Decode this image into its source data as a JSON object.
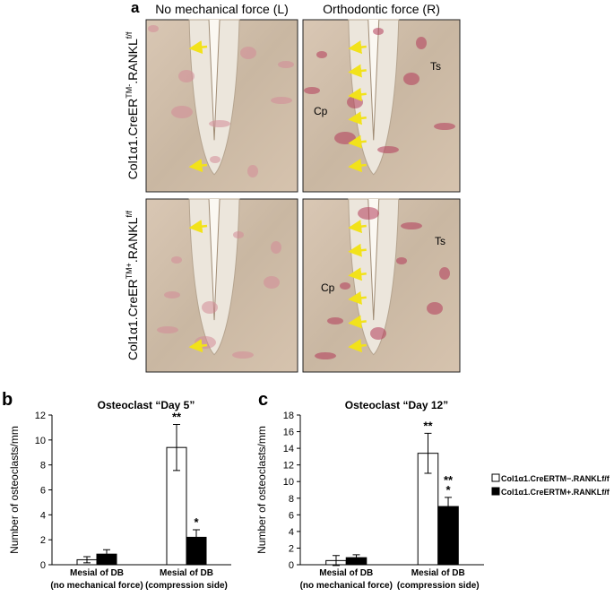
{
  "panel_a": {
    "letter": "a",
    "columns": [
      "No mechanical force (L)",
      "Orthodontic force (R)"
    ],
    "rows": [
      {
        "base": "Col1α1.CreER",
        "sup1": "TM-",
        "mid": ".RANKL",
        "sup2": "f/f"
      },
      {
        "base": "Col1α1.CreER",
        "sup1": "TM+",
        "mid": ".RANKL",
        "sup2": "f/f"
      }
    ],
    "images": [
      {
        "labels": []
      },
      {
        "labels": [
          "Cp",
          "Ts"
        ]
      },
      {
        "labels": []
      },
      {
        "labels": [
          "Cp",
          "Ts"
        ]
      }
    ]
  },
  "chart_data": [
    {
      "type": "bar",
      "panel": "b",
      "title": "Osteoclast “Day 5”",
      "y_label": "Number of osteoclasts/mm",
      "categories": [
        [
          "Mesial of DB",
          "(no mechanical force)"
        ],
        [
          "Mesial of DB",
          "(compression side)"
        ]
      ],
      "series": [
        {
          "color": "#ffffff",
          "values": [
            0.4,
            9.4
          ],
          "errors": [
            0.25,
            1.85
          ],
          "significance": [
            null,
            [
              "**"
            ]
          ]
        },
        {
          "color": "#000000",
          "values": [
            0.85,
            2.2
          ],
          "errors": [
            0.35,
            0.6
          ],
          "significance": [
            null,
            [
              "*"
            ]
          ]
        }
      ],
      "ylim": [
        0,
        12
      ],
      "yticks": [
        0,
        2,
        4,
        6,
        8,
        10,
        12
      ],
      "legend": false
    },
    {
      "type": "bar",
      "panel": "c",
      "title": "Osteoclast “Day 12”",
      "y_label": "Number of osteoclasts/mm",
      "categories": [
        [
          "Mesial of DB",
          "(no mechanical force)"
        ],
        [
          "Mesial of DB",
          "(compression side)"
        ]
      ],
      "series": [
        {
          "name": "Col1α1.CreERTM−.RANKLf/f",
          "color": "#ffffff",
          "values": [
            0.5,
            13.4
          ],
          "errors": [
            0.6,
            2.4
          ],
          "significance": [
            null,
            [
              "**"
            ]
          ]
        },
        {
          "name": "Col1α1.CreERTM+.RANKLf/f",
          "color": "#000000",
          "values": [
            0.85,
            7.0
          ],
          "errors": [
            0.35,
            1.1
          ],
          "significance": [
            null,
            [
              "**",
              "*"
            ]
          ]
        }
      ],
      "ylim": [
        0,
        18
      ],
      "yticks": [
        0,
        2,
        4,
        6,
        8,
        10,
        12,
        14,
        16,
        18
      ],
      "legend": true
    }
  ]
}
